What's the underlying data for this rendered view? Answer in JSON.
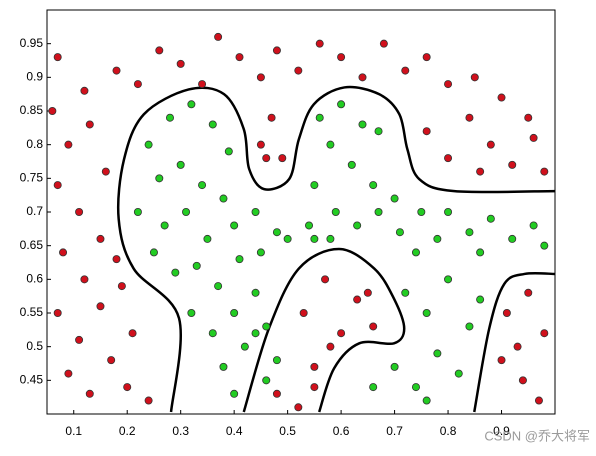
{
  "chart_data": {
    "type": "scatter",
    "xlim": [
      0.05,
      1.0
    ],
    "ylim": [
      0.4,
      1.0
    ],
    "xticks": [
      0.1,
      0.2,
      0.3,
      0.4,
      0.5,
      0.6,
      0.7,
      0.8,
      0.9
    ],
    "yticks": [
      0.45,
      0.5,
      0.55,
      0.6,
      0.65,
      0.7,
      0.75,
      0.8,
      0.85,
      0.9,
      0.95
    ],
    "series": [
      {
        "color": "#d0101c",
        "x": [
          0.07,
          0.12,
          0.18,
          0.22,
          0.26,
          0.3,
          0.34,
          0.37,
          0.41,
          0.45,
          0.48,
          0.52,
          0.56,
          0.6,
          0.64,
          0.68,
          0.72,
          0.76,
          0.8,
          0.85,
          0.9,
          0.95,
          0.06,
          0.09,
          0.13,
          0.07,
          0.11,
          0.16,
          0.08,
          0.12,
          0.15,
          0.07,
          0.11,
          0.15,
          0.19,
          0.09,
          0.13,
          0.17,
          0.21,
          0.2,
          0.24,
          0.18,
          0.45,
          0.47,
          0.46,
          0.49,
          0.76,
          0.8,
          0.84,
          0.88,
          0.92,
          0.96,
          0.86,
          0.98,
          0.53,
          0.57,
          0.6,
          0.63,
          0.66,
          0.55,
          0.55,
          0.48,
          0.52,
          0.65,
          0.58,
          0.91,
          0.95,
          0.98,
          0.9,
          0.94,
          0.97,
          0.93
        ],
        "values": [
          0.93,
          0.88,
          0.91,
          0.89,
          0.94,
          0.92,
          0.89,
          0.96,
          0.93,
          0.9,
          0.94,
          0.91,
          0.95,
          0.93,
          0.9,
          0.95,
          0.91,
          0.93,
          0.89,
          0.9,
          0.87,
          0.84,
          0.85,
          0.8,
          0.83,
          0.74,
          0.7,
          0.76,
          0.64,
          0.6,
          0.66,
          0.55,
          0.51,
          0.56,
          0.59,
          0.46,
          0.43,
          0.48,
          0.52,
          0.44,
          0.42,
          0.63,
          0.8,
          0.84,
          0.78,
          0.78,
          0.82,
          0.78,
          0.84,
          0.8,
          0.77,
          0.81,
          0.76,
          0.76,
          0.55,
          0.6,
          0.52,
          0.57,
          0.53,
          0.47,
          0.44,
          0.43,
          0.41,
          0.58,
          0.5,
          0.55,
          0.58,
          0.52,
          0.48,
          0.45,
          0.42,
          0.5
        ]
      },
      {
        "color": "#22cc22",
        "x": [
          0.24,
          0.28,
          0.32,
          0.36,
          0.39,
          0.26,
          0.3,
          0.34,
          0.38,
          0.22,
          0.27,
          0.31,
          0.35,
          0.4,
          0.44,
          0.48,
          0.25,
          0.29,
          0.33,
          0.37,
          0.41,
          0.45,
          0.32,
          0.36,
          0.4,
          0.44,
          0.38,
          0.42,
          0.4,
          0.46,
          0.48,
          0.44,
          0.5,
          0.55,
          0.46,
          0.56,
          0.6,
          0.64,
          0.67,
          0.58,
          0.62,
          0.66,
          0.7,
          0.55,
          0.59,
          0.63,
          0.67,
          0.71,
          0.75,
          0.54,
          0.58,
          0.74,
          0.8,
          0.84,
          0.88,
          0.92,
          0.96,
          0.78,
          0.86,
          0.98,
          0.72,
          0.76,
          0.8,
          0.84,
          0.78,
          0.82,
          0.74,
          0.7,
          0.86,
          0.66,
          0.76
        ],
        "values": [
          0.8,
          0.84,
          0.86,
          0.83,
          0.79,
          0.75,
          0.77,
          0.74,
          0.72,
          0.7,
          0.68,
          0.7,
          0.66,
          0.68,
          0.7,
          0.67,
          0.64,
          0.61,
          0.62,
          0.59,
          0.63,
          0.64,
          0.55,
          0.52,
          0.55,
          0.58,
          0.47,
          0.5,
          0.43,
          0.53,
          0.48,
          0.52,
          0.66,
          0.66,
          0.45,
          0.84,
          0.86,
          0.83,
          0.82,
          0.8,
          0.77,
          0.74,
          0.72,
          0.74,
          0.7,
          0.68,
          0.7,
          0.67,
          0.7,
          0.68,
          0.66,
          0.64,
          0.7,
          0.67,
          0.69,
          0.66,
          0.68,
          0.66,
          0.64,
          0.65,
          0.58,
          0.55,
          0.6,
          0.53,
          0.49,
          0.46,
          0.44,
          0.47,
          0.57,
          0.44,
          0.42
        ]
      }
    ],
    "boundary": {
      "color": "#000000",
      "pieces": [
        {
          "x": [
            0.282,
            0.297,
            0.212,
            0.184,
            0.194,
            0.231,
            0.315,
            0.381,
            0.418,
            0.428,
            0.456,
            0.503,
            0.521,
            0.549,
            0.606,
            0.671,
            0.709,
            0.724,
            0.746,
            0.812,
            1.0
          ],
          "y": [
            0.403,
            0.542,
            0.616,
            0.69,
            0.778,
            0.845,
            0.882,
            0.875,
            0.823,
            0.764,
            0.734,
            0.749,
            0.808,
            0.86,
            0.885,
            0.875,
            0.845,
            0.793,
            0.749,
            0.731,
            0.731
          ]
        },
        {
          "x": [
            0.418,
            0.465,
            0.521,
            0.596,
            0.662,
            0.699,
            0.718,
            0.699,
            0.634,
            0.587,
            0.559
          ],
          "y": [
            0.403,
            0.527,
            0.616,
            0.645,
            0.616,
            0.571,
            0.527,
            0.505,
            0.505,
            0.468,
            0.403
          ]
        },
        {
          "x": [
            0.849,
            0.877,
            0.905,
            0.943,
            1.0
          ],
          "y": [
            0.403,
            0.527,
            0.593,
            0.608,
            0.608
          ]
        }
      ]
    },
    "watermark": "CSDN @乔大将军"
  }
}
